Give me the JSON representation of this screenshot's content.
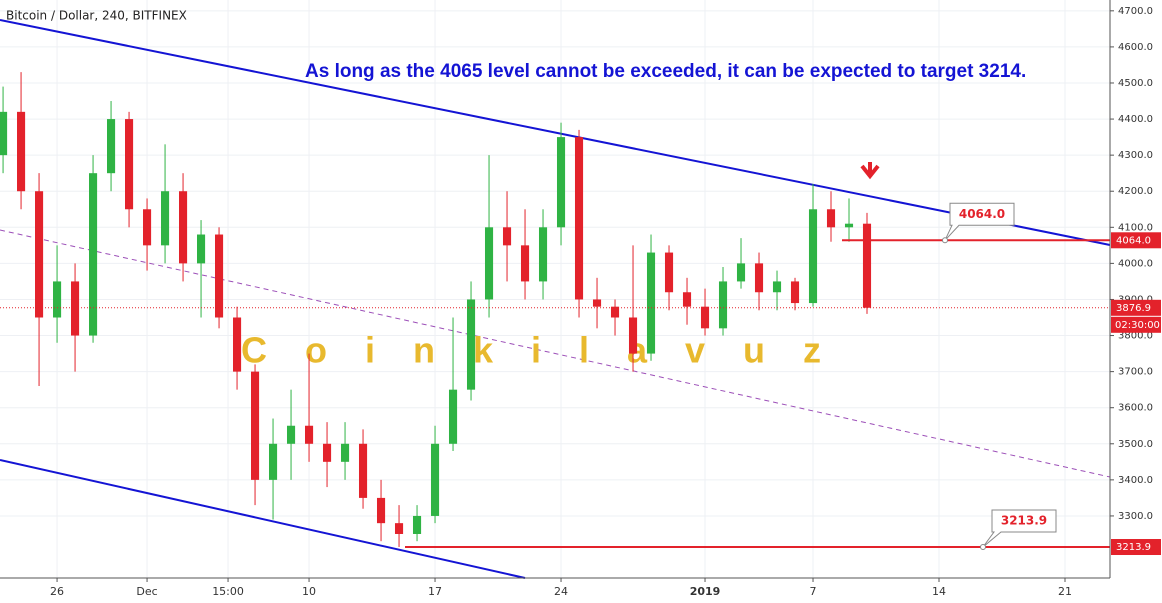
{
  "chart_data": {
    "type": "candlestick",
    "title": "Bitcoin / Dollar, 240, BITFINEX",
    "annotation": "As long as the 4065 level cannot be exceeded, it can be expected to target 3214.",
    "watermark": "Coinkilavuz",
    "x": [
      -3,
      -2,
      -1,
      0,
      1,
      2,
      3,
      4,
      5,
      6,
      7,
      8,
      9,
      10,
      11,
      12,
      13,
      14,
      15,
      16,
      17,
      18,
      19,
      20,
      21,
      22,
      23,
      24,
      25,
      26,
      27,
      28,
      29,
      30,
      31,
      32,
      33,
      34,
      35,
      36,
      37,
      38,
      39,
      40,
      41,
      42,
      43,
      44,
      45
    ],
    "open": [
      4300,
      4420,
      4200,
      3850,
      3950,
      3800,
      4250,
      4400,
      4150,
      4050,
      4200,
      4000,
      4080,
      3850,
      3700,
      3400,
      3500,
      3550,
      3500,
      3450,
      3500,
      3350,
      3280,
      3250,
      3300,
      3500,
      3650,
      3900,
      4100,
      4050,
      3950,
      4100,
      4350,
      3900,
      3880,
      3850,
      3750,
      4030,
      3920,
      3880,
      3820,
      3950,
      4000,
      3920,
      3950,
      3890,
      4150,
      4100,
      4110
    ],
    "high": [
      4490,
      4530,
      4250,
      4050,
      4000,
      4300,
      4450,
      4420,
      4180,
      4330,
      4250,
      4120,
      4100,
      3880,
      3720,
      3570,
      3650,
      3750,
      3560,
      3560,
      3540,
      3400,
      3330,
      3330,
      3550,
      3850,
      3950,
      4300,
      4200,
      4150,
      4150,
      4390,
      4370,
      3960,
      3900,
      4050,
      4080,
      4050,
      3960,
      3930,
      3990,
      4070,
      4030,
      3980,
      3960,
      4220,
      4200,
      4180,
      4140
    ],
    "low": [
      4250,
      4150,
      3660,
      3780,
      3700,
      3780,
      4200,
      4100,
      3980,
      4000,
      3950,
      3850,
      3820,
      3650,
      3330,
      3290,
      3400,
      3450,
      3380,
      3400,
      3320,
      3230,
      3214,
      3230,
      3280,
      3480,
      3620,
      3850,
      3950,
      3900,
      3900,
      4050,
      3850,
      3820,
      3800,
      3700,
      3730,
      3870,
      3830,
      3800,
      3800,
      3930,
      3870,
      3870,
      3870,
      3880,
      4060,
      4060,
      3860
    ],
    "close": [
      4420,
      4200,
      3850,
      3950,
      3800,
      4250,
      4400,
      4150,
      4050,
      4200,
      4000,
      4080,
      3850,
      3700,
      3400,
      3500,
      3550,
      3500,
      3450,
      3500,
      3350,
      3280,
      3250,
      3300,
      3500,
      3650,
      3900,
      4100,
      4050,
      3950,
      4100,
      4350,
      3900,
      3880,
      3850,
      3750,
      4030,
      3920,
      3880,
      3820,
      3950,
      4000,
      3920,
      3950,
      3890,
      4150,
      4100,
      4110,
      3877
    ],
    "up_color": "#2fb344",
    "down_color": "#e3222b",
    "xlim": [
      -3.17,
      58.5
    ],
    "xticks": [
      {
        "value": 0,
        "label": "26"
      },
      {
        "value": 5,
        "label": "Dec"
      },
      {
        "value": 9.5,
        "label": "15:00"
      },
      {
        "value": 14,
        "label": "10"
      },
      {
        "value": 21,
        "label": "17"
      },
      {
        "value": 28,
        "label": "24"
      },
      {
        "value": 36,
        "label": "2019"
      },
      {
        "value": 42,
        "label": "7"
      },
      {
        "value": 49,
        "label": "14"
      },
      {
        "value": 56,
        "label": "21"
      }
    ],
    "ylim": [
      3128,
      4730
    ],
    "yticks": [
      {
        "value": 3300,
        "label": "3300.0"
      },
      {
        "value": 3400,
        "label": "3400.0"
      },
      {
        "value": 3500,
        "label": "3500.0"
      },
      {
        "value": 3600,
        "label": "3600.0"
      },
      {
        "value": 3700,
        "label": "3700.0"
      },
      {
        "value": 3800,
        "label": "3800.0"
      },
      {
        "value": 3900,
        "label": "3900.0"
      },
      {
        "value": 4000,
        "label": "4000.0"
      },
      {
        "value": 4100,
        "label": "4100.0"
      },
      {
        "value": 4200,
        "label": "4200.0"
      },
      {
        "value": 4300,
        "label": "4300.0"
      },
      {
        "value": 4400,
        "label": "4400.0"
      },
      {
        "value": 4500,
        "label": "4500.0"
      },
      {
        "value": 4600,
        "label": "4600.0"
      },
      {
        "value": 4700,
        "label": "4700.0"
      }
    ],
    "grid": true,
    "levels": [
      {
        "value": 4064,
        "label": "4064.0"
      },
      {
        "value": 3213.9,
        "label": "3213.9"
      }
    ],
    "last_price": {
      "value": 3876.9,
      "label": "3876.9"
    },
    "countdown": "02:30:00"
  }
}
